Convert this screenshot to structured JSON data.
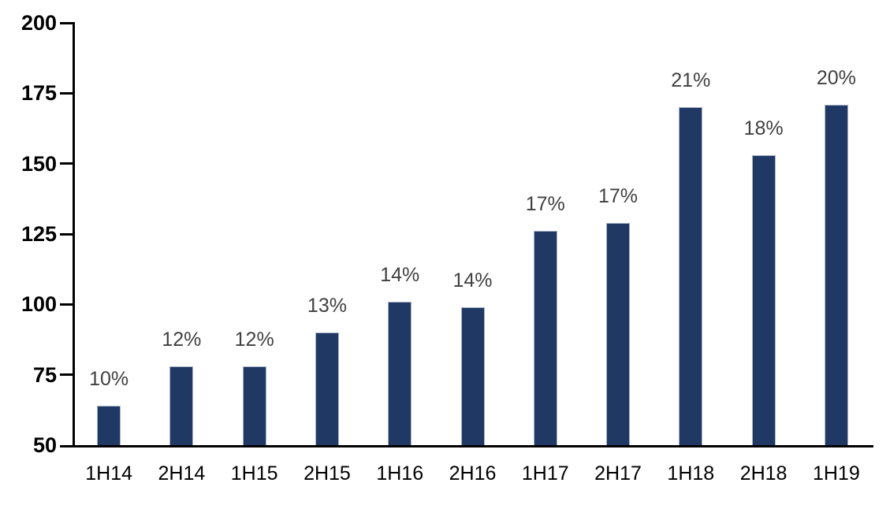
{
  "chart_data": {
    "type": "bar",
    "title": "",
    "xlabel": "",
    "ylabel": "",
    "categories": [
      "1H14",
      "2H14",
      "1H15",
      "2H15",
      "1H16",
      "2H16",
      "1H17",
      "2H17",
      "1H18",
      "2H18",
      "1H19"
    ],
    "values": [
      64,
      78,
      78,
      90,
      101,
      99,
      126,
      129,
      170,
      153,
      171
    ],
    "bar_labels": [
      "10%",
      "12%",
      "12%",
      "13%",
      "14%",
      "14%",
      "17%",
      "17%",
      "21%",
      "18%",
      "20%"
    ],
    "ylim": [
      50,
      200
    ],
    "yticks": [
      50,
      75,
      100,
      125,
      150,
      175,
      200
    ],
    "grid": false,
    "legend_position": "none",
    "colors": {
      "bar_fill": "#1F3864",
      "bar_border": "#A9B4C8",
      "value_label": "#404040",
      "axis_line": "#000000",
      "tick_label": "#000000"
    }
  }
}
